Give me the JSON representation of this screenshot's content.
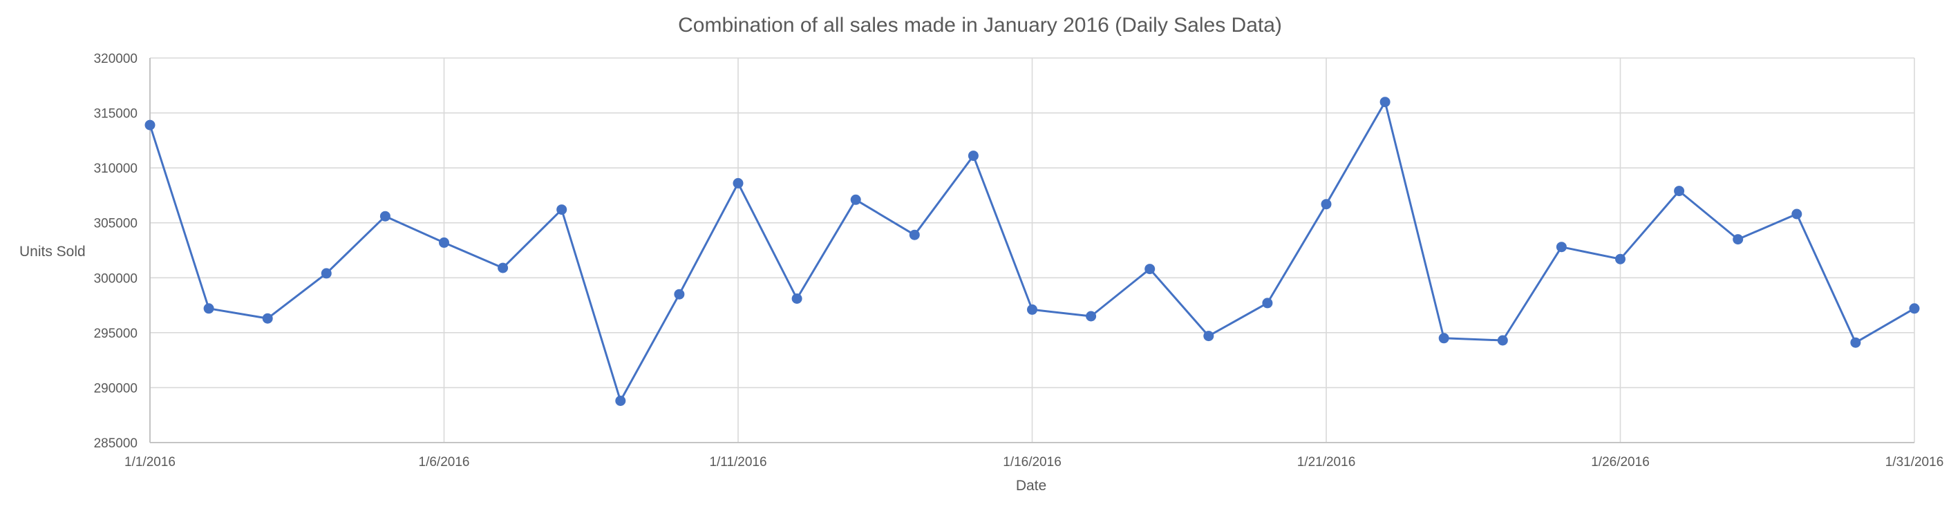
{
  "chart_data": {
    "type": "line",
    "title": "Combination of all sales made in January 2016 (Daily Sales Data)",
    "xlabel": "Date",
    "ylabel": "Units Sold",
    "ylim": [
      285000,
      320000
    ],
    "y_ticks": [
      285000,
      290000,
      295000,
      300000,
      305000,
      310000,
      315000,
      320000
    ],
    "x_ticks": [
      "1/1/2016",
      "1/6/2016",
      "1/11/2016",
      "1/16/2016",
      "1/21/2016",
      "1/26/2016",
      "1/31/2016"
    ],
    "grid": true,
    "legend": "none",
    "color": "#4472c4",
    "series": [
      {
        "x": [
          "1/1/2016",
          "1/2/2016",
          "1/3/2016",
          "1/4/2016",
          "1/5/2016",
          "1/6/2016",
          "1/7/2016",
          "1/8/2016",
          "1/9/2016",
          "1/10/2016",
          "1/11/2016",
          "1/12/2016",
          "1/13/2016",
          "1/14/2016",
          "1/15/2016",
          "1/16/2016",
          "1/17/2016",
          "1/18/2016",
          "1/19/2016",
          "1/20/2016",
          "1/21/2016",
          "1/22/2016",
          "1/23/2016",
          "1/24/2016",
          "1/25/2016",
          "1/26/2016",
          "1/27/2016",
          "1/28/2016",
          "1/29/2016",
          "1/30/2016",
          "1/31/2016"
        ],
        "values": [
          313900,
          297200,
          296300,
          300400,
          305600,
          303200,
          300900,
          306200,
          288800,
          298500,
          308600,
          298100,
          307100,
          303900,
          311100,
          297100,
          296500,
          300800,
          294700,
          297700,
          306700,
          316000,
          294500,
          294300,
          302800,
          301700,
          307900,
          303500,
          305800,
          294100,
          297200
        ]
      }
    ]
  }
}
